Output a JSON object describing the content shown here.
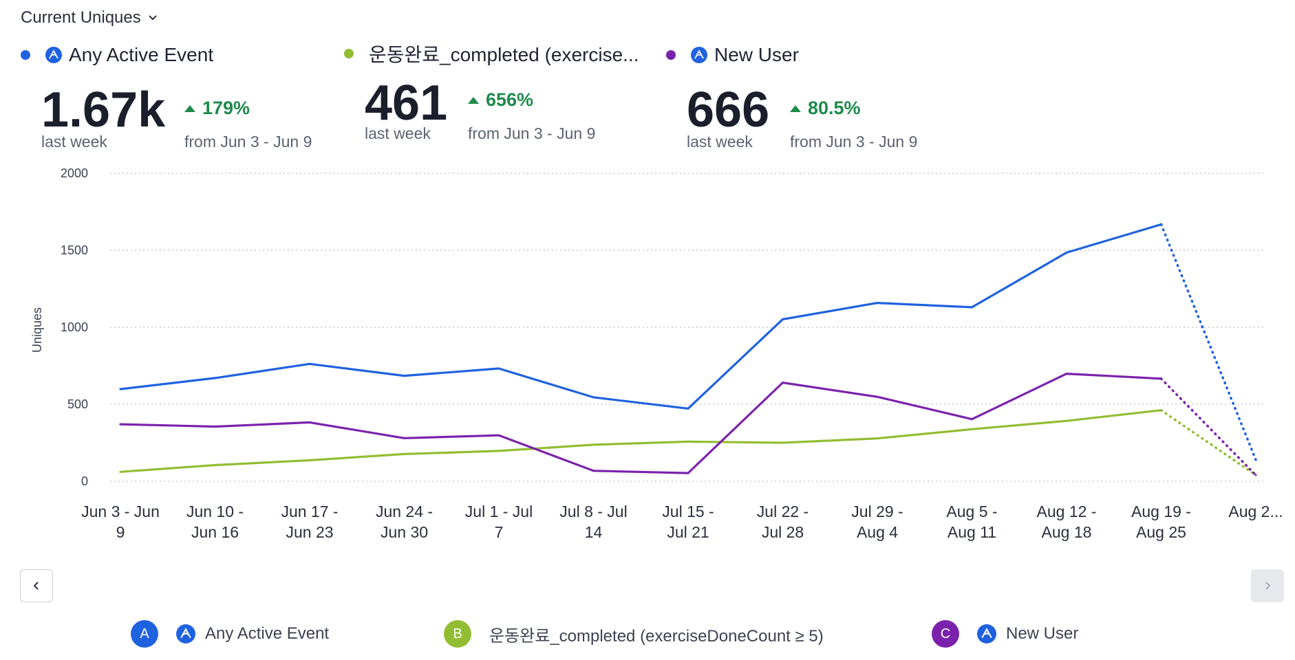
{
  "header": {
    "metric_label": "Current Uniques"
  },
  "summaries": [
    {
      "name": "Any Active Event",
      "value": "1.67k",
      "period": "last week",
      "delta": "179%",
      "from": "from Jun 3 - Jun 9",
      "color": "#1f62e0"
    },
    {
      "name": "운동완료_completed (exercise...",
      "value": "461",
      "period": "last week",
      "delta": "656%",
      "from": "from Jun 3 - Jun 9",
      "color": "#92bd32"
    },
    {
      "name": "New User",
      "value": "666",
      "period": "last week",
      "delta": "80.5%",
      "from": "from Jun 3 - Jun 9",
      "color": "#7b22ad"
    }
  ],
  "legend": [
    {
      "badge": "A",
      "label": "Any Active Event",
      "color": "#1f62e0"
    },
    {
      "badge": "B",
      "label": "운동완료_completed (exerciseDoneCount ≥ 5)",
      "color": "#92bd32"
    },
    {
      "badge": "C",
      "label": "New User",
      "color": "#7b22ad"
    }
  ],
  "chart_data": {
    "type": "line",
    "ylabel": "Uniques",
    "ylim": [
      0,
      2000
    ],
    "yticks": [
      0,
      500,
      1000,
      1500,
      2000
    ],
    "grid": true,
    "categories": [
      [
        "Jun 3 - Jun",
        "9"
      ],
      [
        "Jun 10 -",
        "Jun 16"
      ],
      [
        "Jun 17 -",
        "Jun 23"
      ],
      [
        "Jun 24 -",
        "Jun 30"
      ],
      [
        "Jul 1 - Jul",
        "7"
      ],
      [
        "Jul 8 - Jul",
        "14"
      ],
      [
        "Jul 15 -",
        "Jul 21"
      ],
      [
        "Jul 22 -",
        "Jul 28"
      ],
      [
        "Jul 29 -",
        "Aug 4"
      ],
      [
        "Aug 5 -",
        "Aug 11"
      ],
      [
        "Aug 12 -",
        "Aug 18"
      ],
      [
        "Aug 19 -",
        "Aug 25"
      ],
      [
        "Aug 2..."
      ]
    ],
    "series": [
      {
        "name": "Any Active Event",
        "color": "#1f62e0",
        "values": [
          598,
          670,
          762,
          685,
          732,
          545,
          472,
          1052,
          1158,
          1130,
          1485,
          1668,
          140
        ]
      },
      {
        "name": "운동완료_completed (exerciseDoneCount ≥ 5)",
        "color": "#92bd32",
        "values": [
          61,
          105,
          136,
          177,
          197,
          237,
          257,
          250,
          278,
          338,
          392,
          461,
          40
        ]
      },
      {
        "name": "New User",
        "color": "#7b22ad",
        "values": [
          370,
          355,
          382,
          280,
          298,
          68,
          53,
          640,
          548,
          403,
          698,
          666,
          40
        ]
      }
    ],
    "incomplete_last_point": true
  }
}
